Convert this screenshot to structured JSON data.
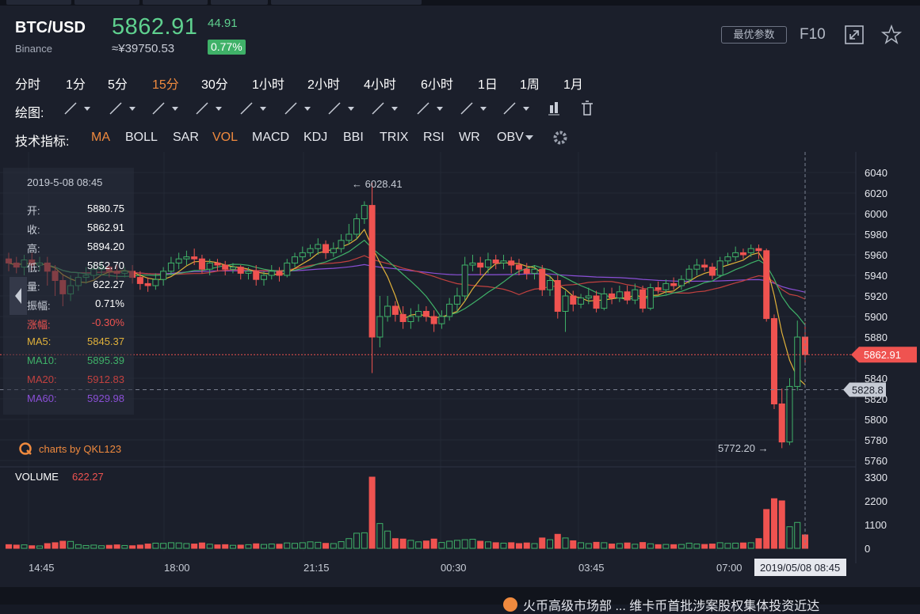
{
  "header": {
    "symbol": "BTC/USD",
    "exchange": "Binance",
    "price": "5862.91",
    "cny_price": "≈¥39750.53",
    "change": "44.91",
    "change_pct": "0.77%",
    "best_params_label": "最优参数",
    "f10_label": "F10"
  },
  "timeframes": [
    {
      "label": "分时",
      "active": false
    },
    {
      "label": "1分",
      "active": false
    },
    {
      "label": "5分",
      "active": false
    },
    {
      "label": "15分",
      "active": true
    },
    {
      "label": "30分",
      "active": false
    },
    {
      "label": "1小时",
      "active": false
    },
    {
      "label": "2小时",
      "active": false
    },
    {
      "label": "4小时",
      "active": false
    },
    {
      "label": "6小时",
      "active": false
    },
    {
      "label": "1日",
      "active": false
    },
    {
      "label": "1周",
      "active": false
    },
    {
      "label": "1月",
      "active": false
    }
  ],
  "drawing": {
    "label": "绘图:",
    "tools": [
      "line-tool-icon",
      "polyline-tool-icon",
      "channel-tool-icon",
      "shape-tool-icon",
      "wave-tool-icon",
      "pattern-tool-icon",
      "fib-tool-icon",
      "gann-tool-icon",
      "arrow-tool-icon",
      "measure-tool-icon",
      "text-tool-icon",
      "candle-marker-icon",
      "trash-icon"
    ]
  },
  "indicators": {
    "label": "技术指标:",
    "items": [
      {
        "label": "MA",
        "active": true
      },
      {
        "label": "BOLL",
        "active": false
      },
      {
        "label": "SAR",
        "active": false
      },
      {
        "label": "VOL",
        "active": true
      },
      {
        "label": "MACD",
        "active": false
      },
      {
        "label": "KDJ",
        "active": false
      },
      {
        "label": "BBI",
        "active": false
      },
      {
        "label": "TRIX",
        "active": false
      },
      {
        "label": "RSI",
        "active": false
      },
      {
        "label": "WR",
        "active": false
      },
      {
        "label": "OBV",
        "active": false
      }
    ]
  },
  "info_panel": {
    "date": "2019-5-08 08:45",
    "rows": [
      {
        "label": "开:",
        "value": "5880.75",
        "color": "#ffffff"
      },
      {
        "label": "收:",
        "value": "5862.91",
        "color": "#ffffff"
      },
      {
        "label": "高:",
        "value": "5894.20",
        "color": "#ffffff"
      },
      {
        "label": "低:",
        "value": "5852.70",
        "color": "#ffffff"
      },
      {
        "label": "量:",
        "value": "622.27",
        "color": "#ffffff"
      },
      {
        "label": "振幅:",
        "value": "0.71%",
        "color": "#ffffff"
      },
      {
        "label": "涨幅:",
        "value": "-0.30%",
        "color": "#ef5350"
      },
      {
        "label": "MA5:",
        "value": "5845.37",
        "color": "#e0b13a"
      },
      {
        "label": "MA10:",
        "value": "5895.39",
        "color": "#3fb168"
      },
      {
        "label": "MA20:",
        "value": "5912.83",
        "color": "#c2413f"
      },
      {
        "label": "MA60:",
        "value": "5929.98",
        "color": "#8a4fd6"
      }
    ]
  },
  "watermark": "charts by QKL123",
  "volume_label": "VOLUME",
  "volume_value": "622.27",
  "ticker_text": "火币高级市场部 ... 维卡币首批涉案股权集体投资近达",
  "colors": {
    "up": "#3fb168",
    "down": "#ef5350",
    "ma5": "#e0b13a",
    "ma10": "#3fb168",
    "ma20": "#c2413f",
    "ma60": "#8a4fd6",
    "accent": "#f08a3e"
  },
  "chart_data": {
    "type": "candlestick",
    "price_axis": {
      "ticks": [
        6040,
        6020,
        6000,
        5980,
        5960,
        5940,
        5920,
        5900,
        5880,
        5860,
        5840,
        5820,
        5800,
        5780,
        5760
      ],
      "range": [
        5756,
        6055
      ]
    },
    "volume_axis": {
      "ticks": [
        3300,
        2200,
        1100,
        0
      ],
      "range": [
        0,
        3500
      ]
    },
    "x_labels": [
      "14:45",
      "18:00",
      "21:15",
      "00:30",
      "03:45",
      "07:00"
    ],
    "cursor_time": "2019/05/08 08:45",
    "last_price_label": "5862.91",
    "crosshair_price_label": "5828.8",
    "max_annotation": "6028.41",
    "min_annotation": "5772.20",
    "candles": [
      [
        5956,
        5952,
        5962,
        5944,
        170
      ],
      [
        5952,
        5948,
        5958,
        5942,
        150
      ],
      [
        5948,
        5955,
        5960,
        5940,
        160
      ],
      [
        5955,
        5950,
        5962,
        5945,
        120
      ],
      [
        5950,
        5952,
        5958,
        5944,
        110
      ],
      [
        5952,
        5944,
        5958,
        5930,
        220
      ],
      [
        5944,
        5935,
        5950,
        5920,
        260
      ],
      [
        5935,
        5922,
        5940,
        5910,
        330
      ],
      [
        5922,
        5930,
        5940,
        5915,
        320
      ],
      [
        5930,
        5938,
        5942,
        5925,
        170
      ],
      [
        5938,
        5940,
        5948,
        5932,
        130
      ],
      [
        5940,
        5946,
        5952,
        5936,
        150
      ],
      [
        5946,
        5948,
        5954,
        5940,
        120
      ],
      [
        5948,
        5944,
        5952,
        5938,
        140
      ],
      [
        5944,
        5942,
        5950,
        5936,
        160
      ],
      [
        5942,
        5944,
        5948,
        5938,
        130
      ],
      [
        5944,
        5938,
        5950,
        5932,
        120
      ],
      [
        5938,
        5932,
        5944,
        5926,
        150
      ],
      [
        5932,
        5930,
        5938,
        5924,
        200
      ],
      [
        5930,
        5936,
        5942,
        5926,
        240
      ],
      [
        5936,
        5944,
        5948,
        5930,
        230
      ],
      [
        5944,
        5952,
        5958,
        5940,
        260
      ],
      [
        5952,
        5956,
        5962,
        5946,
        250
      ],
      [
        5956,
        5958,
        5964,
        5950,
        220
      ],
      [
        5958,
        5956,
        5966,
        5950,
        200
      ],
      [
        5956,
        5946,
        5960,
        5942,
        250
      ],
      [
        5946,
        5952,
        5956,
        5940,
        190
      ],
      [
        5952,
        5950,
        5956,
        5944,
        160
      ],
      [
        5950,
        5946,
        5954,
        5940,
        170
      ],
      [
        5946,
        5948,
        5952,
        5942,
        140
      ],
      [
        5948,
        5942,
        5950,
        5936,
        150
      ],
      [
        5942,
        5944,
        5948,
        5936,
        170
      ],
      [
        5944,
        5936,
        5950,
        5930,
        210
      ],
      [
        5936,
        5940,
        5944,
        5930,
        180
      ],
      [
        5940,
        5944,
        5950,
        5936,
        200
      ],
      [
        5944,
        5940,
        5948,
        5934,
        190
      ],
      [
        5940,
        5952,
        5956,
        5938,
        250
      ],
      [
        5952,
        5958,
        5962,
        5948,
        230
      ],
      [
        5958,
        5962,
        5968,
        5954,
        260
      ],
      [
        5962,
        5966,
        5970,
        5958,
        300
      ],
      [
        5966,
        5970,
        5976,
        5960,
        280
      ],
      [
        5970,
        5962,
        5974,
        5956,
        230
      ],
      [
        5962,
        5966,
        5972,
        5958,
        220
      ],
      [
        5966,
        5974,
        5980,
        5962,
        310
      ],
      [
        5974,
        5980,
        5990,
        5970,
        450
      ],
      [
        5980,
        5995,
        6000,
        5975,
        700
      ],
      [
        5995,
        6008,
        6012,
        5990,
        720
      ],
      [
        6008,
        5880,
        6030,
        5845,
        3300
      ],
      [
        5880,
        5900,
        5920,
        5870,
        1150
      ],
      [
        5900,
        5910,
        5920,
        5895,
        800
      ],
      [
        5910,
        5902,
        5915,
        5895,
        450
      ],
      [
        5902,
        5895,
        5910,
        5888,
        430
      ],
      [
        5895,
        5900,
        5908,
        5888,
        370
      ],
      [
        5900,
        5905,
        5912,
        5895,
        300
      ],
      [
        5905,
        5900,
        5910,
        5895,
        340
      ],
      [
        5900,
        5893,
        5906,
        5885,
        430
      ],
      [
        5893,
        5900,
        5906,
        5888,
        270
      ],
      [
        5900,
        5912,
        5918,
        5896,
        330
      ],
      [
        5912,
        5920,
        5928,
        5905,
        370
      ],
      [
        5920,
        5950,
        5958,
        5915,
        400
      ],
      [
        5950,
        5952,
        5960,
        5944,
        420
      ],
      [
        5952,
        5948,
        5958,
        5940,
        330
      ],
      [
        5948,
        5955,
        5962,
        5942,
        300
      ],
      [
        5955,
        5952,
        5960,
        5946,
        260
      ],
      [
        5952,
        5954,
        5960,
        5946,
        240
      ],
      [
        5954,
        5950,
        5958,
        5942,
        260
      ],
      [
        5950,
        5946,
        5956,
        5940,
        220
      ],
      [
        5946,
        5942,
        5952,
        5936,
        250
      ],
      [
        5942,
        5946,
        5950,
        5936,
        220
      ],
      [
        5946,
        5926,
        5950,
        5920,
        480
      ],
      [
        5926,
        5935,
        5940,
        5920,
        400
      ],
      [
        5935,
        5905,
        5940,
        5898,
        650
      ],
      [
        5905,
        5920,
        5925,
        5885,
        480
      ],
      [
        5920,
        5912,
        5925,
        5905,
        350
      ],
      [
        5912,
        5918,
        5922,
        5908,
        260
      ],
      [
        5918,
        5920,
        5928,
        5912,
        220
      ],
      [
        5920,
        5908,
        5925,
        5904,
        280
      ],
      [
        5908,
        5922,
        5928,
        5906,
        260
      ],
      [
        5922,
        5918,
        5928,
        5912,
        200
      ],
      [
        5918,
        5924,
        5930,
        5914,
        220
      ],
      [
        5924,
        5916,
        5930,
        5912,
        250
      ],
      [
        5916,
        5926,
        5932,
        5912,
        190
      ],
      [
        5926,
        5908,
        5930,
        5904,
        270
      ],
      [
        5908,
        5928,
        5932,
        5906,
        210
      ],
      [
        5928,
        5926,
        5934,
        5922,
        170
      ],
      [
        5926,
        5932,
        5936,
        5922,
        180
      ],
      [
        5932,
        5930,
        5938,
        5926,
        170
      ],
      [
        5930,
        5936,
        5940,
        5926,
        180
      ],
      [
        5936,
        5946,
        5950,
        5932,
        240
      ],
      [
        5946,
        5950,
        5956,
        5940,
        200
      ],
      [
        5950,
        5948,
        5956,
        5944,
        180
      ],
      [
        5948,
        5940,
        5952,
        5936,
        200
      ],
      [
        5940,
        5954,
        5958,
        5938,
        260
      ],
      [
        5954,
        5958,
        5962,
        5950,
        230
      ],
      [
        5958,
        5962,
        5968,
        5954,
        240
      ],
      [
        5962,
        5960,
        5966,
        5956,
        250
      ],
      [
        5962,
        5966,
        5970,
        5958,
        260
      ],
      [
        5966,
        5964,
        5970,
        5956,
        450
      ],
      [
        5964,
        5898,
        5966,
        5895,
        1800
      ],
      [
        5898,
        5815,
        5902,
        5810,
        2300
      ],
      [
        5815,
        5778,
        5830,
        5772,
        2200
      ],
      [
        5778,
        5832,
        5840,
        5775,
        1000
      ],
      [
        5832,
        5880,
        5896,
        5828,
        1200
      ],
      [
        5880,
        5863,
        5894,
        5853,
        622
      ]
    ]
  }
}
